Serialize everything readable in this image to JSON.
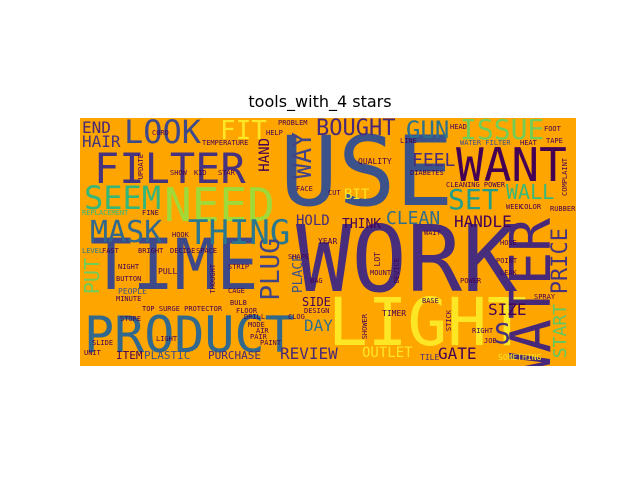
{
  "title": "tools_with_4 stars",
  "background_color": "#ffa500",
  "words": {
    "use": "USE",
    "work": "WORK",
    "time": "TIME",
    "product": "PRODUCT",
    "light": "LIGHT",
    "want": "WANT",
    "water": "WATER",
    "filter": "FILTER",
    "need": "NEED",
    "look": "LOOK",
    "mask": "MASK",
    "thing": "THING",
    "seem": "SEEM",
    "set": "SET",
    "plug": "PLUG",
    "way": "WAY",
    "bought": "BOUGHT",
    "gun": "GUN",
    "issue": "ISSUE",
    "fit": "FIT",
    "end": "END",
    "hair": "HAIR",
    "feel": "FEEL",
    "wall": "WALL",
    "clean": "CLEAN",
    "hold": "HOLD",
    "handle": "HANDLE",
    "think": "THINK",
    "price": "PRICE",
    "size": "SIZE",
    "start": "START",
    "s": "S",
    "gate": "GATE",
    "review": "REVIEW",
    "day": "DAY",
    "outlet": "OUTLET",
    "item": "ITEM",
    "plastic": "PLASTIC",
    "purchase": "PURCHASE",
    "put": "PUT",
    "hand": "HAND",
    "place": "PLACE",
    "side": "SIDE",
    "bit": "BIT",
    "year": "YEAR",
    "quality": "QUALITY",
    "lot": "LOT",
    "timer": "TIMER",
    "tile": "TILE",
    "something": "SOMETHING",
    "pull": "PULL",
    "people": "PEOPLE",
    "night": "NIGHT",
    "level": "LEVEL",
    "bright": "BRIGHT",
    "decide": "DECIDE",
    "strip": "STRIP",
    "cage": "CAGE",
    "slide": "SLIDE",
    "unit": "UNIT",
    "leak": "LEAK",
    "point": "POINT",
    "foot": "FOOT",
    "heat": "HEAT",
    "water_filter": "WATER FILTER",
    "cleaning_power": "CLEANING POWER",
    "design": "DESIGN",
    "problem": "PROBLEM",
    "help": "HELP",
    "temperature": "TEMPERATURE",
    "standard": "STANDARD",
    "replacement": "REPLACEMENT",
    "fine": "FINE",
    "hook": "HOOK",
    "minute": "MINUTE",
    "button": "BUTTON",
    "top_surge_protector": "TOP SURGE PROTECTOR",
    "wait": "WAIT",
    "base": "BASE",
    "stick": "STICK",
    "device": "DEVICE",
    "mount": "MOUNT",
    "diabetes": "DIABETES",
    "hose": "HOSE",
    "star": "STAR",
    "update": "UPDATE",
    "show": "SHOW",
    "kid": "KID",
    "clog": "CLOG",
    "face": "FACE",
    "cut": "CUT",
    "cord": "CORD",
    "fast": "FAST",
    "week": "WEEK",
    "rubber": "RUBBER",
    "head": "HEAD",
    "line": "LINE",
    "tape": "TAPE",
    "color": "COLOR",
    "floor": "FLOOR",
    "bulb": "BULB",
    "mode": "MODE",
    "pair": "PAIR",
    "power": "POWER",
    "drill": "DRILL",
    "right": "RIGHT",
    "job": "JOB",
    "spray": "SPRAY",
    "shape": "SHAPE",
    "shower": "SHOWER",
    "space": "SPACE",
    "light2": "LIGHT",
    "air": "AIR",
    "paint": "PAINT",
    "store": "STORE",
    "thought": "THOUGHT",
    "complaint": "COMPLAINT",
    "bag": "BAG"
  }
}
